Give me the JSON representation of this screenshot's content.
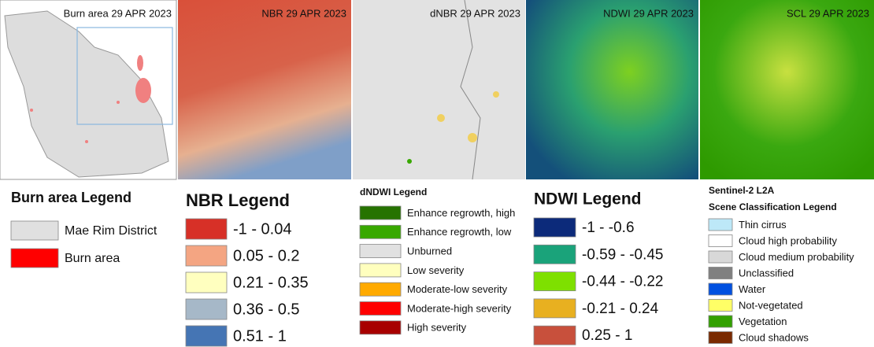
{
  "panels": [
    {
      "title": "Burn area 29 APR 2023"
    },
    {
      "title": "NBR 29 APR 2023"
    },
    {
      "title": "dNBR 29 APR 2023"
    },
    {
      "title": "NDWI 29 APR 2023"
    },
    {
      "title": "SCL 29 APR 2023"
    }
  ],
  "legends": [
    {
      "title": "Burn area Legend",
      "items": [
        {
          "label": "Mae Rim District",
          "color": "#e0e0e0"
        },
        {
          "label": "Burn area",
          "color": "#ff0000"
        }
      ]
    },
    {
      "title": "NBR Legend",
      "items": [
        {
          "label": "-1 - 0.04",
          "color": "#d73027"
        },
        {
          "label": "0.05 - 0.2",
          "color": "#f4a582"
        },
        {
          "label": "0.21 - 0.35",
          "color": "#ffffbf"
        },
        {
          "label": "0.36 - 0.5",
          "color": "#a6b8c8"
        },
        {
          "label": "0.51 - 1",
          "color": "#4575b4"
        }
      ]
    },
    {
      "title": "dNDWI Legend",
      "items": [
        {
          "label": "Enhance regrowth, high",
          "color": "#267300"
        },
        {
          "label": "Enhance regrowth, low",
          "color": "#38a800"
        },
        {
          "label": "Unburned",
          "color": "#e1e1e1"
        },
        {
          "label": "Low severity",
          "color": "#ffffbe"
        },
        {
          "label": "Moderate-low severity",
          "color": "#ffaa00"
        },
        {
          "label": "Moderate-high severity",
          "color": "#ff0000"
        },
        {
          "label": "High severity",
          "color": "#a80000"
        }
      ]
    },
    {
      "title": "NDWI Legend",
      "items": [
        {
          "label": "-1 - -0.6",
          "color": "#0c2a7a"
        },
        {
          "label": "-0.59 - -0.45",
          "color": "#1aa37a"
        },
        {
          "label": "-0.44 - -0.22",
          "color": "#7ee000"
        },
        {
          "label": "-0.21 - 0.24",
          "color": "#e8b020"
        },
        {
          "label": "0.25 - 1",
          "color": "#c8503c"
        }
      ]
    },
    {
      "title": [
        "Sentinel-2 L2A",
        "Scene Classification Legend"
      ],
      "items": [
        {
          "label": "Thin cirrus",
          "color": "#bde8f8"
        },
        {
          "label": "Cloud high probability",
          "color": "#ffffff"
        },
        {
          "label": "Cloud medium probability",
          "color": "#d8d8d8"
        },
        {
          "label": "Unclassified",
          "color": "#808080"
        },
        {
          "label": "Water",
          "color": "#0050e0"
        },
        {
          "label": "Not-vegetated",
          "color": "#ffff66"
        },
        {
          "label": "Vegetation",
          "color": "#33a000"
        },
        {
          "label": "Cloud shadows",
          "color": "#7a2a00"
        }
      ]
    }
  ]
}
